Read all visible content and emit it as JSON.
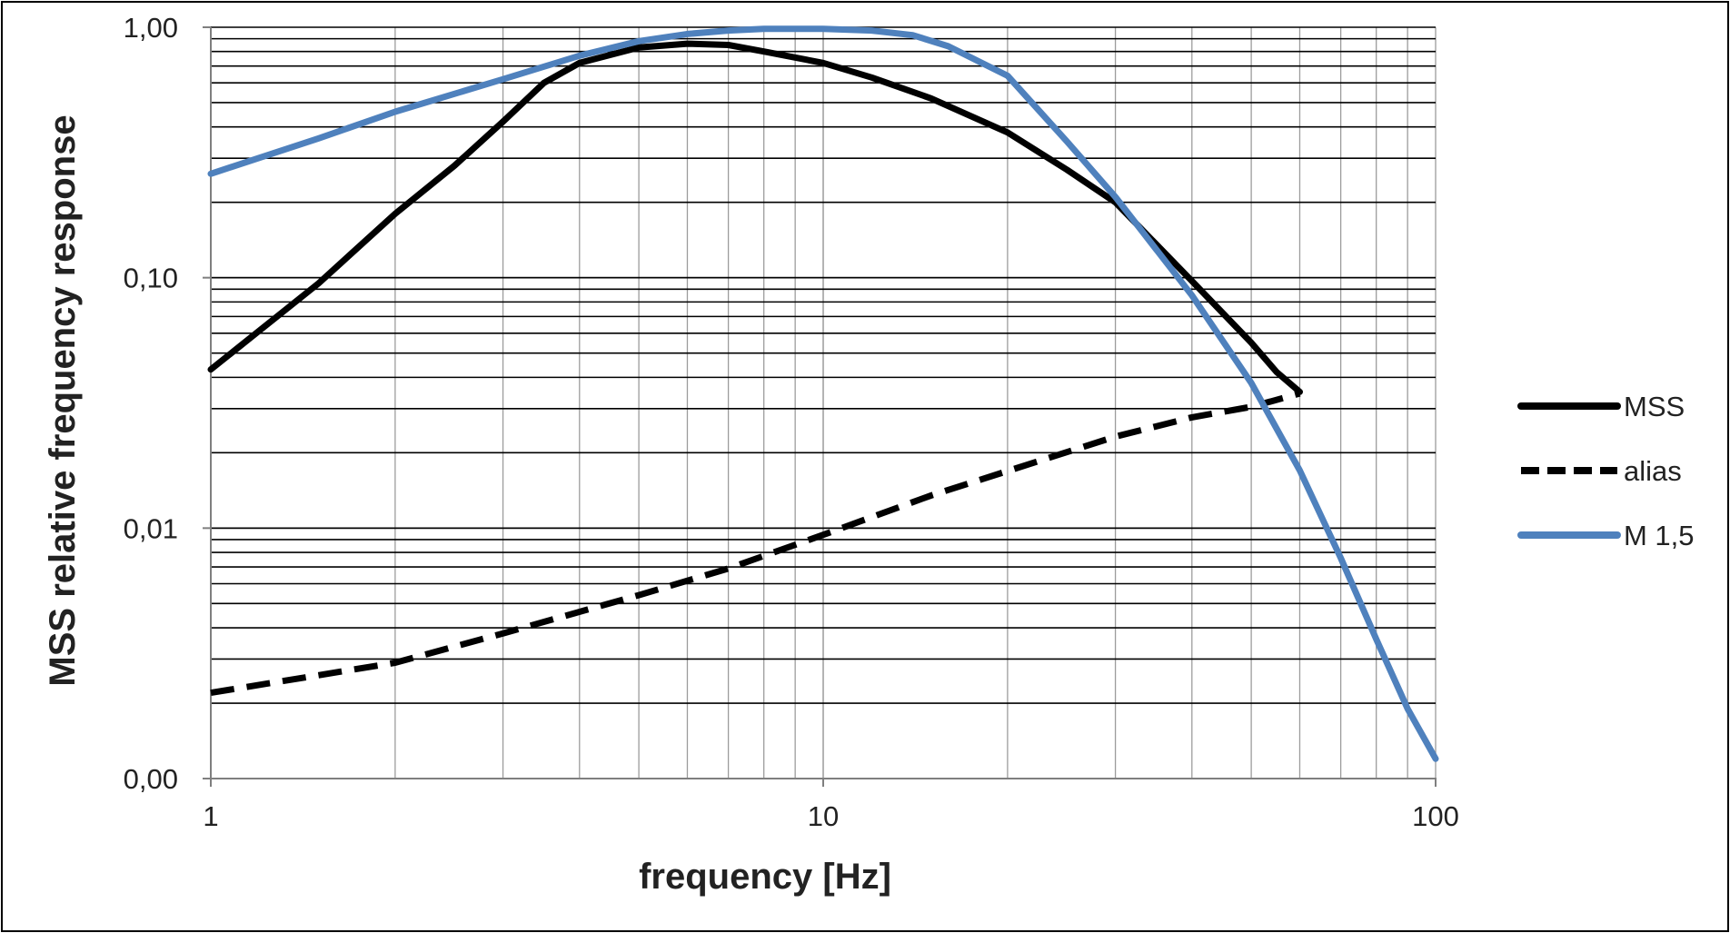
{
  "chart_data": {
    "type": "line",
    "xlabel": "frequency [Hz]",
    "ylabel": "MSS relative frequency response",
    "x_scale": "log",
    "y_scale": "log",
    "xlim": [
      1,
      100
    ],
    "ylim": [
      0.001,
      1
    ],
    "x_ticks": [
      {
        "value": 1,
        "label": "1"
      },
      {
        "value": 10,
        "label": "10"
      },
      {
        "value": 100,
        "label": "100"
      }
    ],
    "y_ticks": [
      {
        "value": 1,
        "label": "1,00"
      },
      {
        "value": 0.1,
        "label": "0,10"
      },
      {
        "value": 0.01,
        "label": "0,01"
      },
      {
        "value": 0.001,
        "label": "0,00"
      }
    ],
    "grid": true,
    "legend_position": "right",
    "series": [
      {
        "name": "MSS",
        "color": "#000000",
        "dash": "solid",
        "x": [
          1,
          1.5,
          2,
          2.5,
          3,
          3.5,
          4,
          5,
          6,
          7,
          8,
          10,
          12,
          15,
          20,
          25,
          30,
          40,
          50,
          55,
          60
        ],
        "y": [
          0.043,
          0.095,
          0.18,
          0.28,
          0.42,
          0.6,
          0.72,
          0.83,
          0.86,
          0.85,
          0.8,
          0.72,
          0.63,
          0.52,
          0.38,
          0.27,
          0.2,
          0.097,
          0.055,
          0.042,
          0.035
        ]
      },
      {
        "name": "alias",
        "color": "#000000",
        "dash": "dashed",
        "x": [
          1,
          2,
          3,
          5,
          7,
          10,
          15,
          20,
          30,
          40,
          50,
          60
        ],
        "y": [
          0.0022,
          0.0029,
          0.0038,
          0.0054,
          0.0069,
          0.0094,
          0.0135,
          0.0169,
          0.0232,
          0.0277,
          0.0305,
          0.0345
        ]
      },
      {
        "name": "M 1,5",
        "color": "#4F81BD",
        "dash": "solid",
        "x": [
          1,
          1.5,
          2,
          3,
          4,
          5,
          6,
          7,
          8,
          10,
          12,
          14,
          16,
          20,
          25,
          30,
          40,
          50,
          60,
          70,
          80,
          90,
          100
        ],
        "y": [
          0.26,
          0.36,
          0.46,
          0.62,
          0.77,
          0.88,
          0.94,
          0.97,
          0.985,
          0.985,
          0.97,
          0.93,
          0.84,
          0.64,
          0.35,
          0.21,
          0.085,
          0.038,
          0.017,
          0.0076,
          0.0036,
          0.0019,
          0.0012
        ]
      }
    ]
  }
}
